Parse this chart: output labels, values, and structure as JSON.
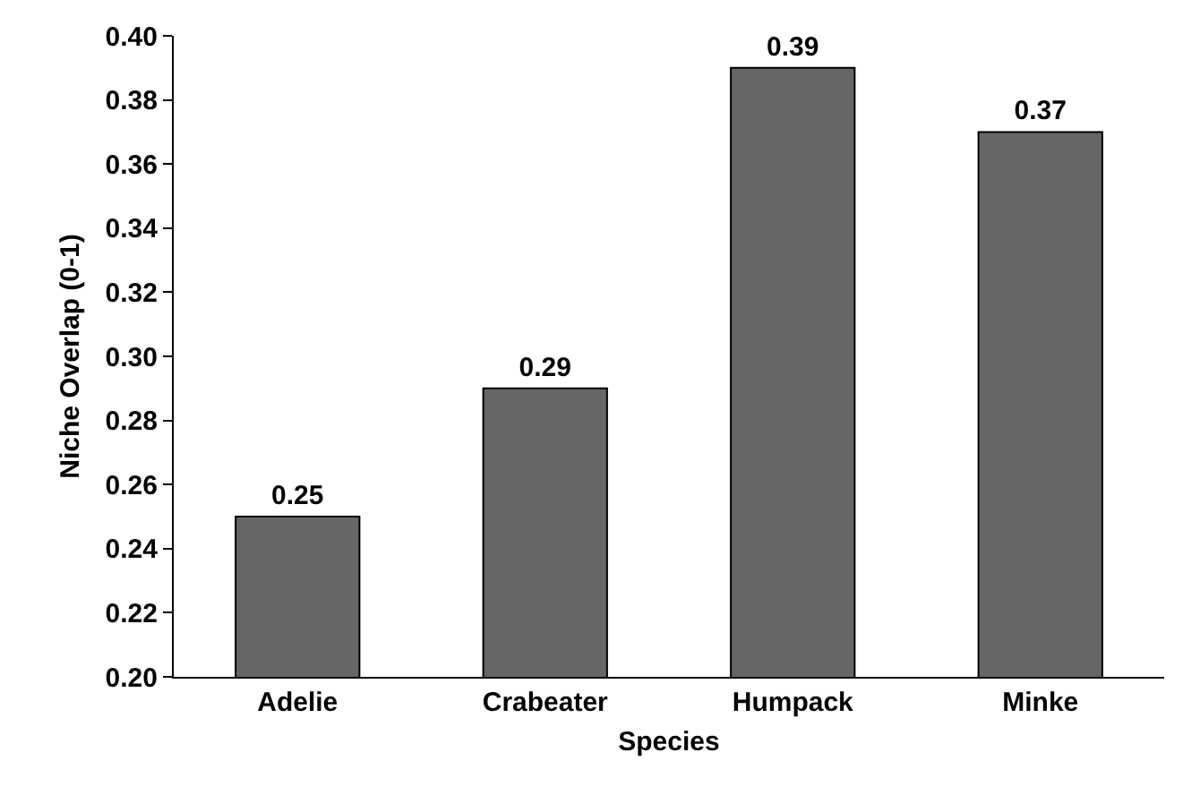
{
  "chart_data": {
    "type": "bar",
    "xlabel": "Species",
    "ylabel": "Niche Overlap (0-1)",
    "categories": [
      "Adelie",
      "Crabeater",
      "Humpack",
      "Minke"
    ],
    "values": [
      0.25,
      0.29,
      0.39,
      0.37
    ],
    "color": "#666666",
    "ylim": [
      0.2,
      0.4
    ],
    "yticks": [
      {
        "value": 0.2,
        "label": "0.20"
      },
      {
        "value": 0.22,
        "label": "0.22"
      },
      {
        "value": 0.24,
        "label": "0.24"
      },
      {
        "value": 0.26,
        "label": "0.26"
      },
      {
        "value": 0.28,
        "label": "0.28"
      },
      {
        "value": 0.3,
        "label": "0.30"
      },
      {
        "value": 0.32,
        "label": "0.32"
      },
      {
        "value": 0.34,
        "label": "0.34"
      },
      {
        "value": 0.36,
        "label": "0.36"
      },
      {
        "value": 0.38,
        "label": "0.38"
      },
      {
        "value": 0.4,
        "label": "0.40"
      }
    ],
    "grid": false,
    "data_labels": true
  }
}
